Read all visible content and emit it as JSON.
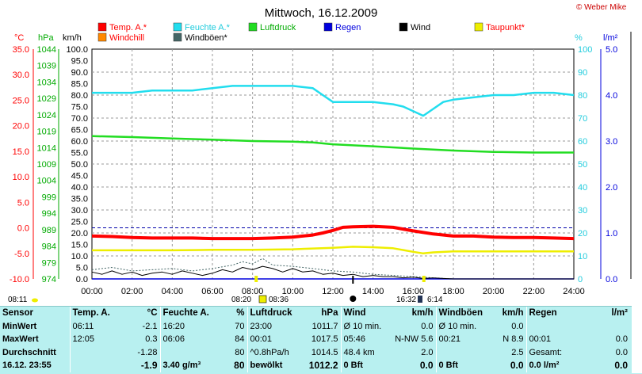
{
  "title": "Mittwoch, 16.12.2009",
  "copyright": "© Weber Mike",
  "colors": {
    "temp": "#ff0000",
    "humidity": "#22ddee",
    "pressure": "#22dd22",
    "rain": "#0000dd",
    "wind": "#000000",
    "dewpoint": "#eeee00",
    "windchill": "#ff8800",
    "gust": "#446666",
    "grid": "#999999",
    "tableBg": "#b8f0f0"
  },
  "legend": [
    {
      "label": "Temp. A.*",
      "color": "#ff0000",
      "textColor": "#ff0000"
    },
    {
      "label": "Feuchte A.*",
      "color": "#22ddee",
      "textColor": "#22ccdd"
    },
    {
      "label": "Luftdruck",
      "color": "#22dd22",
      "textColor": "#00aa00"
    },
    {
      "label": "Regen",
      "color": "#0000dd",
      "textColor": "#0000dd"
    },
    {
      "label": "Wind",
      "color": "#000000",
      "textColor": "#000000"
    },
    {
      "label": "Taupunkt*",
      "color": "#eeee00",
      "textColor": "#ff0000"
    },
    {
      "label": "Windchill",
      "color": "#ff8800",
      "textColor": "#ff0000"
    },
    {
      "label": "Windböen*",
      "color": "#446666",
      "textColor": "#000000"
    }
  ],
  "axes": {
    "celsius": {
      "unit": "°C",
      "ticks": [
        "35.0",
        "30.0",
        "25.0",
        "20.0",
        "15.0",
        "10.0",
        "5.0",
        "0.0",
        "-5.0",
        "-10.0"
      ],
      "range": [
        -10,
        35
      ]
    },
    "hpa": {
      "unit": "hPa",
      "ticks": [
        "1044",
        "1039",
        "1034",
        "1029",
        "1024",
        "1019",
        "1014",
        "1009",
        "1004",
        "999",
        "994",
        "989",
        "984",
        "979",
        "974"
      ],
      "range": [
        974,
        1044
      ]
    },
    "kmh": {
      "unit": "km/h",
      "ticks": [
        "100.0",
        "95.0",
        "90.0",
        "85.0",
        "80.0",
        "75.0",
        "70.0",
        "65.0",
        "60.0",
        "55.0",
        "50.0",
        "45.0",
        "40.0",
        "35.0",
        "30.0",
        "25.0",
        "20.0",
        "15.0",
        "10.0",
        "5.0",
        "0.0"
      ],
      "range": [
        0,
        100
      ]
    },
    "percent": {
      "unit": "%",
      "ticks": [
        "100",
        "90",
        "80",
        "70",
        "60",
        "50",
        "40",
        "30",
        "20",
        "10",
        "0"
      ],
      "range": [
        0,
        100
      ]
    },
    "rain": {
      "unit": "l/m²",
      "ticks": [
        "5.0",
        "4.0",
        "3.0",
        "2.0",
        "1.0",
        "0.0"
      ],
      "range": [
        0,
        5
      ]
    },
    "time": {
      "ticks": [
        "00:00",
        "02:00",
        "04:00",
        "06:00",
        "08:00",
        "10:00",
        "12:00",
        "14:00",
        "16:00",
        "18:00",
        "20:00",
        "22:00",
        "24:00"
      ]
    }
  },
  "sun": {
    "sunrise": "08:11",
    "sunriseHour": 8.18,
    "sunset": "16:32",
    "sunsetHour": 16.53,
    "dayStart": "08:20",
    "dayEnd": "08:36",
    "moonRise": "6:14",
    "moonHour": 13.0
  },
  "chart_data": {
    "type": "line",
    "title": "Mittwoch, 16.12.2009",
    "x_unit": "hour",
    "xlim": [
      0,
      24
    ],
    "series": [
      {
        "name": "Temp. A.*",
        "axis": "celsius",
        "x": [
          0,
          1,
          2,
          3,
          4,
          5,
          6,
          7,
          8,
          9,
          10,
          11,
          11.5,
          12,
          12.5,
          13,
          14,
          15,
          16,
          17,
          18,
          19,
          20,
          21,
          22,
          23,
          24
        ],
        "values": [
          -1.6,
          -1.7,
          -1.9,
          -2.0,
          -2.0,
          -2.0,
          -2.1,
          -2.1,
          -2.1,
          -2.0,
          -1.8,
          -1.4,
          -1.0,
          -0.5,
          0.1,
          0.2,
          0.3,
          0.1,
          -0.6,
          -1.2,
          -1.6,
          -1.6,
          -1.8,
          -1.9,
          -1.9,
          -2.0,
          -2.1
        ]
      },
      {
        "name": "Feuchte A.*",
        "axis": "percent",
        "x": [
          0,
          1,
          2,
          3,
          4,
          5,
          6,
          7,
          8,
          9,
          10,
          11,
          11.5,
          12,
          13,
          14,
          15,
          15.5,
          16,
          16.5,
          17,
          17.5,
          18,
          19,
          20,
          21,
          22,
          23,
          24
        ],
        "values": [
          81,
          81,
          81,
          82,
          82,
          82,
          83,
          84,
          84,
          84,
          84,
          83,
          80,
          77,
          77,
          77,
          76,
          75,
          73,
          71,
          74,
          77,
          78,
          79,
          80,
          80,
          81,
          81,
          80
        ]
      },
      {
        "name": "Luftdruck",
        "axis": "hpa",
        "x": [
          0,
          2,
          4,
          6,
          8,
          10,
          11,
          12,
          13,
          14,
          16,
          18,
          20,
          22,
          24
        ],
        "values": [
          1017.5,
          1017.2,
          1016.8,
          1016.4,
          1016.0,
          1015.8,
          1015.6,
          1015.0,
          1014.7,
          1014.4,
          1013.7,
          1013.1,
          1012.7,
          1012.5,
          1012.5
        ]
      },
      {
        "name": "Taupunkt*",
        "axis": "celsius",
        "x": [
          0,
          2,
          4,
          6,
          8,
          10,
          12,
          13,
          14,
          15,
          16,
          16.5,
          17,
          18,
          20,
          22,
          24
        ],
        "values": [
          -4.4,
          -4.4,
          -4.4,
          -4.3,
          -4.3,
          -4.2,
          -3.9,
          -3.7,
          -3.8,
          -4.0,
          -4.7,
          -5.0,
          -4.8,
          -4.6,
          -4.6,
          -4.6,
          -4.6
        ]
      },
      {
        "name": "Wind",
        "axis": "kmh",
        "x": [
          0,
          0.5,
          1,
          1.5,
          2,
          2.5,
          3,
          3.5,
          4,
          4.5,
          5,
          5.5,
          6,
          6.5,
          7,
          7.5,
          8,
          8.5,
          9,
          9.5,
          10,
          10.5,
          11,
          11.5,
          12,
          12.5,
          13,
          13.5,
          14,
          14.5,
          15,
          15.5,
          16,
          16.5,
          17,
          17.5,
          18,
          19,
          20,
          21,
          22,
          23,
          24
        ],
        "values": [
          3.0,
          2.0,
          3.5,
          2.0,
          3.0,
          1.5,
          2.5,
          3.0,
          2.0,
          3.5,
          2.5,
          1.5,
          2.5,
          4.0,
          3.0,
          5.0,
          4.0,
          5.5,
          4.5,
          3.0,
          4.5,
          3.0,
          3.5,
          2.0,
          2.5,
          1.5,
          2.0,
          1.0,
          1.5,
          1.0,
          1.0,
          0.5,
          0.8,
          0.2,
          0.4,
          0.2,
          0.0,
          0.0,
          0.0,
          0.0,
          0.0,
          0.0,
          0.0
        ]
      },
      {
        "name": "Windböen*",
        "axis": "kmh",
        "x": [
          0,
          1,
          2,
          3,
          4,
          5,
          6,
          7,
          7.5,
          8,
          8.5,
          9,
          10,
          11,
          12,
          13,
          14,
          15,
          16,
          17,
          18,
          20,
          22,
          24
        ],
        "values": [
          4.0,
          5.0,
          3.5,
          4.0,
          4.5,
          3.5,
          4.5,
          6.0,
          7.5,
          6.5,
          8.9,
          6.0,
          5.5,
          4.5,
          3.5,
          3.0,
          2.0,
          1.5,
          1.0,
          0.5,
          0.0,
          0.0,
          0.0,
          0.0
        ]
      },
      {
        "name": "Regen",
        "axis": "rain",
        "x": [
          0,
          24
        ],
        "values": [
          0.0,
          0.0
        ]
      }
    ]
  },
  "table": {
    "header": [
      "Sensor",
      "Temp. A.",
      "°C",
      "Feuchte A.",
      "%",
      "Luftdruck",
      "hPa",
      "Wind",
      "km/h",
      "Windböen",
      "km/h",
      "Regen",
      "l/m²"
    ],
    "rows": [
      {
        "label": "MinWert",
        "cells": [
          "06:11",
          "-2.1",
          "16:20",
          "70",
          "23:00",
          "1011.7",
          "Ø 10 min.",
          "0.0",
          "Ø 10 min.",
          "0.0",
          "",
          ""
        ]
      },
      {
        "label": "MaxWert",
        "cells": [
          "12:05",
          "0.3",
          "06:06",
          "84",
          "00:01",
          "1017.5",
          "05:46",
          "N-NW 5.6",
          "00:21",
          "N 8.9",
          "00:01",
          "0.0"
        ]
      },
      {
        "label": "Durchschnitt",
        "cells": [
          "",
          "-1.28",
          "",
          "80",
          "^0.8hPa/h",
          "1014.5",
          "48.4 km",
          "2.0",
          "",
          "2.5",
          "Gesamt:",
          "0.0"
        ]
      },
      {
        "label": "16.12. 23:55",
        "cells": [
          "",
          "-1.9",
          "3.40 g/m³",
          "80",
          "bewölkt",
          "1012.2",
          "0 Bft",
          "0.0",
          "0 Bft",
          "0.0",
          "0.0 l/m²",
          "0.0"
        ]
      }
    ]
  }
}
